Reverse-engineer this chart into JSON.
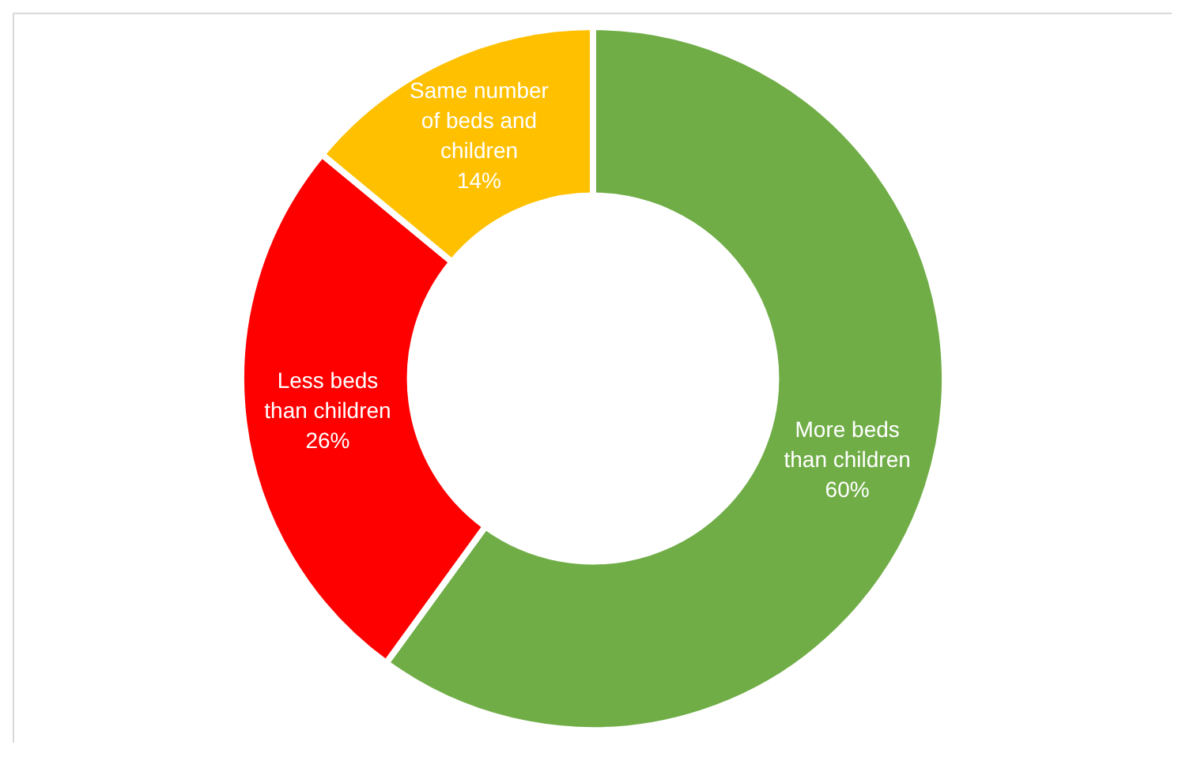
{
  "chart_data": {
    "type": "donut",
    "categories": [
      "More beds than children",
      "Less beds than children",
      "Same number of beds and children"
    ],
    "values": [
      60,
      26,
      14
    ],
    "colors": [
      "#70ad47",
      "#ff0000",
      "#ffc000"
    ],
    "value_labels": [
      "60%",
      "26%",
      "14%"
    ]
  }
}
